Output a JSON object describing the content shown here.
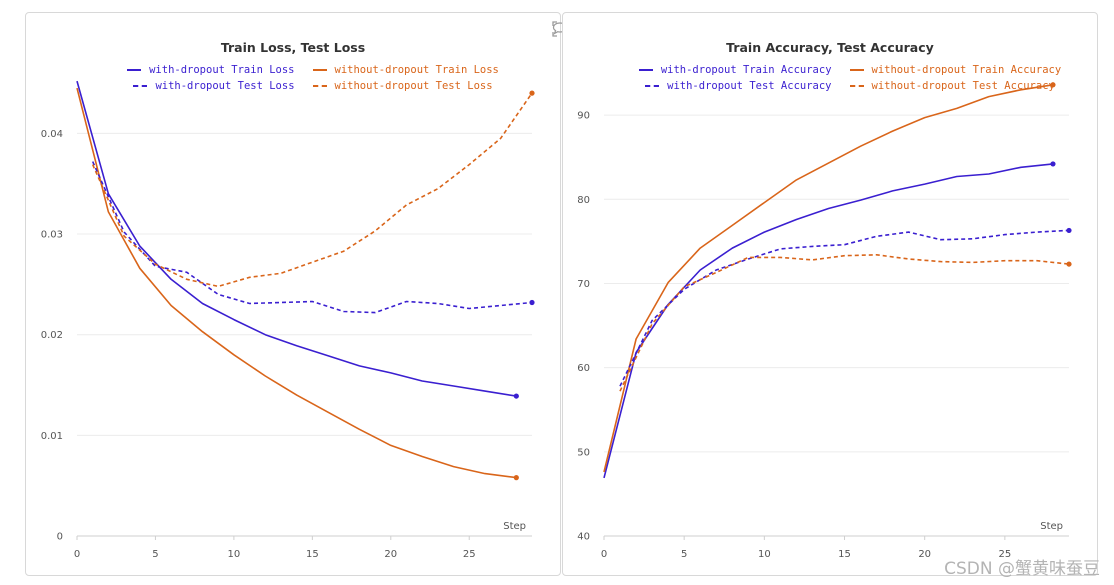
{
  "colors": {
    "with_dropout": "#3a1fd0",
    "without_dropout": "#d9651a"
  },
  "watermark": "CSDN @蟹黄味蚕豆",
  "icons": [
    "expand-icon",
    "comment-icon"
  ],
  "chart_data": [
    {
      "type": "line",
      "title": "Train Loss, Test Loss",
      "xlabel": "Step",
      "ylabel": "",
      "xlim": [
        0,
        29
      ],
      "ylim": [
        0,
        0.046
      ],
      "xticks": [
        0,
        5,
        10,
        15,
        20,
        25
      ],
      "xtick_labels": [
        "0",
        "5",
        "10",
        "15",
        "20",
        "25"
      ],
      "yticks": [
        0,
        0.01,
        0.02,
        0.03,
        0.04
      ],
      "ytick_labels": [
        "0",
        "0.01",
        "0.02",
        "0.03",
        "0.04"
      ],
      "legend_position": "top",
      "series": [
        {
          "name": "with-dropout Train Loss",
          "color_key": "with_dropout",
          "dash": false,
          "x": [
            0,
            2,
            4,
            6,
            8,
            10,
            12,
            14,
            16,
            18,
            20,
            22,
            24,
            26,
            28
          ],
          "y": [
            0.0452,
            0.034,
            0.0288,
            0.0255,
            0.0231,
            0.0215,
            0.02,
            0.0189,
            0.0179,
            0.0169,
            0.0162,
            0.0154,
            0.0149,
            0.0144,
            0.0139
          ]
        },
        {
          "name": "without-dropout Train Loss",
          "color_key": "without_dropout",
          "dash": false,
          "x": [
            0,
            2,
            4,
            6,
            8,
            10,
            12,
            14,
            16,
            18,
            20,
            22,
            24,
            26,
            28
          ],
          "y": [
            0.0445,
            0.0322,
            0.0266,
            0.0229,
            0.0203,
            0.018,
            0.0159,
            0.014,
            0.0123,
            0.0106,
            0.009,
            0.0079,
            0.0069,
            0.0062,
            0.0058
          ]
        },
        {
          "name": "with-dropout Test Loss",
          "color_key": "with_dropout",
          "dash": true,
          "x": [
            1,
            3,
            5,
            7,
            9,
            11,
            13,
            15,
            17,
            19,
            21,
            23,
            25,
            27,
            29
          ],
          "y": [
            0.0372,
            0.0302,
            0.0268,
            0.0262,
            0.024,
            0.0231,
            0.0232,
            0.0233,
            0.0223,
            0.0222,
            0.0233,
            0.0231,
            0.0226,
            0.0229,
            0.0232
          ]
        },
        {
          "name": "without-dropout Test Loss",
          "color_key": "without_dropout",
          "dash": true,
          "x": [
            1,
            3,
            5,
            7,
            9,
            11,
            13,
            15,
            17,
            19,
            21,
            23,
            25,
            27,
            29
          ],
          "y": [
            0.0369,
            0.0298,
            0.027,
            0.0255,
            0.0248,
            0.0257,
            0.0261,
            0.0272,
            0.0283,
            0.0303,
            0.0329,
            0.0345,
            0.0369,
            0.0395,
            0.044
          ]
        }
      ]
    },
    {
      "type": "line",
      "title": "Train Accuracy, Test Accuracy",
      "xlabel": "Step",
      "ylabel": "",
      "xlim": [
        0,
        29
      ],
      "ylim": [
        40,
        95
      ],
      "xticks": [
        0,
        5,
        10,
        15,
        20,
        25
      ],
      "xtick_labels": [
        "0",
        "5",
        "10",
        "15",
        "20",
        "25"
      ],
      "yticks": [
        40,
        50,
        60,
        70,
        80,
        90
      ],
      "ytick_labels": [
        "40",
        "50",
        "60",
        "70",
        "80",
        "90"
      ],
      "legend_position": "top",
      "series": [
        {
          "name": "with-dropout Train Accuracy",
          "color_key": "with_dropout",
          "dash": false,
          "x": [
            0,
            2,
            4,
            6,
            8,
            10,
            12,
            14,
            16,
            18,
            20,
            22,
            24,
            26,
            28
          ],
          "y": [
            46.9,
            61.8,
            67.5,
            71.6,
            74.2,
            76.1,
            77.6,
            78.9,
            79.9,
            81.0,
            81.8,
            82.7,
            83.0,
            83.8,
            84.2
          ]
        },
        {
          "name": "without-dropout Train Accuracy",
          "color_key": "without_dropout",
          "dash": false,
          "x": [
            0,
            2,
            4,
            6,
            8,
            10,
            12,
            14,
            16,
            18,
            20,
            22,
            24,
            26,
            28
          ],
          "y": [
            47.6,
            63.4,
            70.1,
            74.2,
            76.9,
            79.6,
            82.3,
            84.3,
            86.3,
            88.1,
            89.7,
            90.8,
            92.2,
            93.0,
            93.6
          ]
        },
        {
          "name": "with-dropout Test Accuracy",
          "color_key": "with_dropout",
          "dash": true,
          "x": [
            1,
            3,
            5,
            7,
            9,
            11,
            13,
            15,
            17,
            19,
            21,
            23,
            25,
            27,
            29
          ],
          "y": [
            57.8,
            65.6,
            69.3,
            71.6,
            72.9,
            74.1,
            74.4,
            74.6,
            75.6,
            76.1,
            75.2,
            75.3,
            75.8,
            76.1,
            76.3
          ]
        },
        {
          "name": "without-dropout Test Accuracy",
          "color_key": "without_dropout",
          "dash": true,
          "x": [
            1,
            3,
            5,
            7,
            9,
            11,
            13,
            15,
            17,
            19,
            21,
            23,
            25,
            27,
            29
          ],
          "y": [
            57.2,
            65.2,
            69.6,
            71.3,
            73.1,
            73.1,
            72.8,
            73.3,
            73.4,
            72.9,
            72.6,
            72.5,
            72.7,
            72.7,
            72.3
          ]
        }
      ]
    }
  ]
}
